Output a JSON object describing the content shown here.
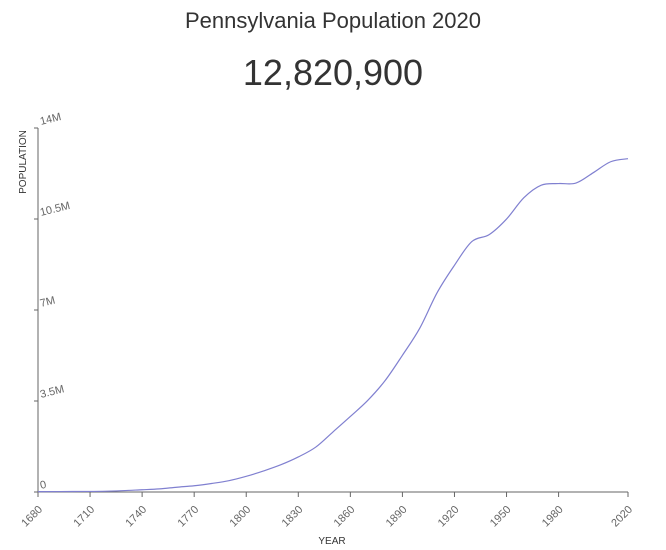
{
  "title": "Pennsylvania Population 2020",
  "headline_value": "12,820,900",
  "chart_data": {
    "type": "line",
    "xlabel": "YEAR",
    "ylabel": "POPULATION",
    "xlim": [
      1680,
      2020
    ],
    "ylim": [
      0,
      14000000
    ],
    "x_ticks": [
      1680,
      1710,
      1740,
      1770,
      1800,
      1830,
      1860,
      1890,
      1920,
      1950,
      1980,
      2020
    ],
    "y_ticks": [
      {
        "value": 0,
        "label": "0"
      },
      {
        "value": 3500000,
        "label": "3.5M"
      },
      {
        "value": 7000000,
        "label": "7M"
      },
      {
        "value": 10500000,
        "label": "10.5M"
      },
      {
        "value": 14000000,
        "label": "14M"
      }
    ],
    "grid": false,
    "line_color": "#8080d0",
    "series": [
      {
        "x": [
          1680,
          1700,
          1720,
          1740,
          1750,
          1760,
          1770,
          1780,
          1790,
          1800,
          1810,
          1820,
          1830,
          1840,
          1850,
          1860,
          1870,
          1880,
          1890,
          1900,
          1910,
          1920,
          1930,
          1940,
          1950,
          1960,
          1970,
          1980,
          1990,
          2000,
          2010,
          2020
        ],
        "y": [
          15000,
          20000,
          31000,
          86000,
          120000,
          184000,
          240000,
          327000,
          434000,
          602000,
          810000,
          1049000,
          1348000,
          1724000,
          2312000,
          2906000,
          3522000,
          4283000,
          5258000,
          6302000,
          7665000,
          8720000,
          9631000,
          9900000,
          10498000,
          11319000,
          11801000,
          11864000,
          11882000,
          12281000,
          12702000,
          12820900
        ]
      }
    ]
  }
}
